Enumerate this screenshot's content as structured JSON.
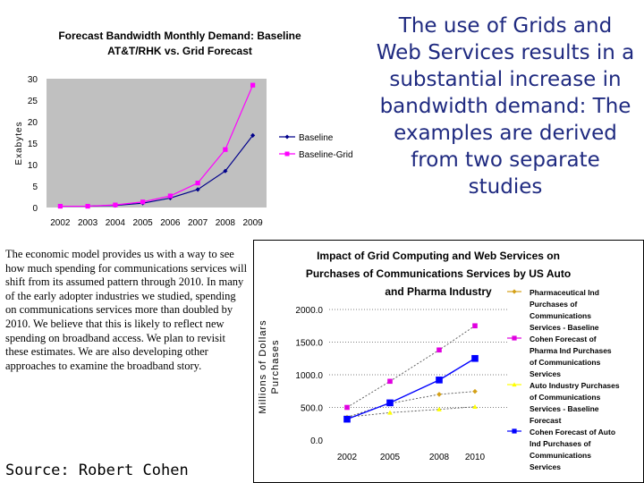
{
  "headline": "The use of Grids and Web Services results in a substantial increase in bandwidth demand:  The examples are derived from two separate studies",
  "body_text": "The economic model provides us with a way to see how much spending for communications services will shift from its assumed pattern through 2010. In many of the early adopter industries we studied, spending on communications services more than doubled by 2010. We believe that this is likely to reflect new spending on broadband access. We plan to revisit these estimates. We are also developing other approaches to examine the broadband story.",
  "source": "Source: Robert Cohen",
  "chart_data": [
    {
      "type": "line",
      "title": "Forecast Bandwidth Monthly Demand: Baseline AT&T/RHK vs. Grid Forecast",
      "title_lines": [
        "Forecast Bandwidth Monthly Demand: Baseline",
        "AT&T/RHK vs. Grid Forecast"
      ],
      "ylabel": "Exabytes",
      "xlabel": "",
      "x": [
        "2002",
        "2003",
        "2004",
        "2005",
        "2006",
        "2007",
        "2008",
        "2009"
      ],
      "ylim": [
        0,
        30
      ],
      "yticks": [
        0,
        5,
        10,
        15,
        20,
        25,
        30
      ],
      "series": [
        {
          "name": "Baseline",
          "color": "#00008b",
          "marker": "diamond",
          "values": [
            0.3,
            0.3,
            0.5,
            1.0,
            2.2,
            4.2,
            8.5,
            16.8
          ]
        },
        {
          "name": "Baseline-Grid",
          "color": "#ff00ff",
          "marker": "square",
          "values": [
            0.3,
            0.3,
            0.6,
            1.3,
            2.7,
            5.7,
            13.5,
            28.5
          ]
        }
      ],
      "legend": "right"
    },
    {
      "type": "line",
      "title": "Impact of Grid Computing and Web Services on Purchases of Communications Services by US Auto and Pharma Industry",
      "title_lines": [
        "Impact of Grid Computing and Web Services on",
        "Purchases of Communications Services by US Auto",
        "and Pharma Industry"
      ],
      "ylabel": "Millions of Dollars Purchases",
      "ylabel_lines": [
        "Millions of Dollars",
        "Purchases"
      ],
      "x": [
        "2002",
        "2005",
        "2008",
        "2010"
      ],
      "ylim": [
        0,
        2000
      ],
      "yticks": [
        "0.0",
        "500.0",
        "1000.0",
        "1500.0",
        "2000.0"
      ],
      "series": [
        {
          "name": "Pharmaceutical Ind Purchases of Communications Services - Baseline",
          "legend_lines": [
            "Pharmaceutical Ind",
            "Purchases of",
            "Communications",
            "Services - Baseline"
          ],
          "color": "#d4a017",
          "marker": "diamond",
          "values": [
            350,
            560,
            700,
            745
          ]
        },
        {
          "name": "Cohen Forecast of Pharma Ind Purchases of Communications Services",
          "legend_lines": [
            "Cohen Forecast of",
            "Pharma Ind Purchases",
            "of Communications",
            "Services"
          ],
          "color": "#e000e0",
          "marker": "square",
          "values": [
            500,
            900,
            1380,
            1750
          ]
        },
        {
          "name": "Auto Industry Purchases of Communications Services - Baseline Forecast",
          "legend_lines": [
            "Auto Industry Purchases",
            "of Communications",
            "Services - Baseline",
            "Forecast"
          ],
          "color": "#ffff00",
          "marker": "triangle",
          "values": [
            350,
            420,
            470,
            510
          ]
        },
        {
          "name": "Cohen Forecast of Auto Ind Purchases of Communications Services",
          "legend_lines": [
            "Cohen Forecast of Auto",
            "Ind Purchases of",
            "Communications",
            "Services"
          ],
          "color": "#0000ff",
          "marker": "square",
          "values": [
            320,
            570,
            920,
            1250
          ]
        }
      ],
      "legend": "right"
    }
  ]
}
